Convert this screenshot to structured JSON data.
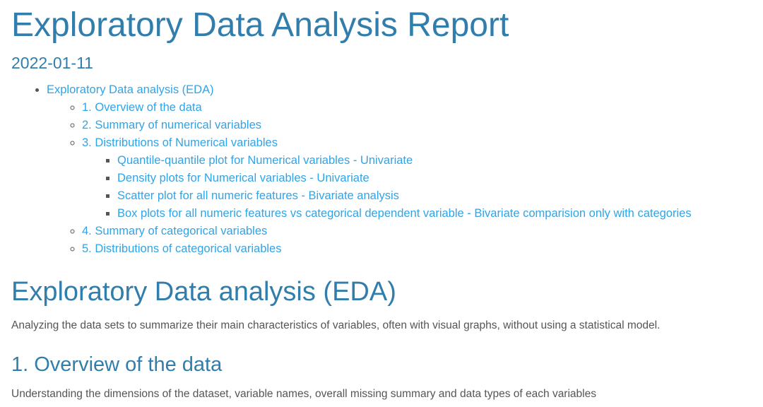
{
  "title": "Exploratory Data Analysis Report",
  "date": "2022-01-11",
  "toc": {
    "top": "Exploratory Data analysis (EDA)",
    "items": [
      {
        "label": "1. Overview of the data"
      },
      {
        "label": "2. Summary of numerical variables"
      },
      {
        "label": "3. Distributions of Numerical variables",
        "children": [
          "Quantile-quantile plot for Numerical variables - Univariate",
          "Density plots for Numerical variables - Univariate",
          "Scatter plot for all numeric features - Bivariate analysis",
          "Box plots for all numeric features vs categorical dependent variable - Bivariate comparision only with categories"
        ]
      },
      {
        "label": "4. Summary of categorical variables"
      },
      {
        "label": "5. Distributions of categorical variables"
      }
    ]
  },
  "section": {
    "heading": "Exploratory Data analysis (EDA)",
    "text": "Analyzing the data sets to summarize their main characteristics of variables, often with visual graphs, without using a statistical model."
  },
  "subsection": {
    "heading": "1. Overview of the data",
    "text": "Understanding the dimensions of the dataset, variable names, overall missing summary and data types of each variables"
  },
  "colors": {
    "heading": "#317eac",
    "link": "#2fa4e7",
    "text": "#555555"
  }
}
